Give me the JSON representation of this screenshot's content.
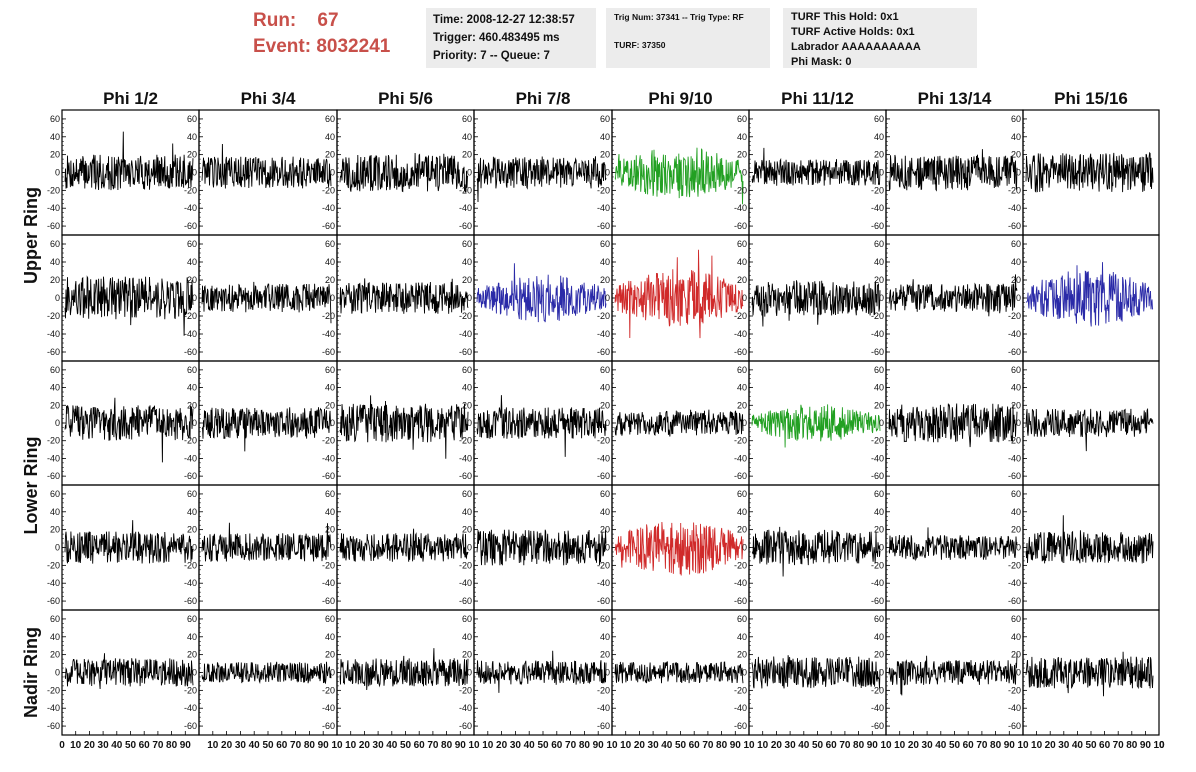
{
  "run_info": {
    "run_label": "Run:",
    "run_value": "67",
    "event_label": "Event:",
    "event_value": "8032241",
    "color": "#c8504a"
  },
  "trigger_box": {
    "time": "Time: 2008-12-27 12:38:57",
    "trigger": "Trigger: 460.483495 ms",
    "priority": "Priority: 7 -- Queue: 7"
  },
  "trig_box": {
    "trig": "Trig Num: 37341 -- Trig Type: RF",
    "turf": "TURF: 37350"
  },
  "turf_box": {
    "hold": "TURF This Hold: 0x1",
    "active": "TURF Active Holds: 0x1",
    "labrador": "Labrador AAAAAAAAAA",
    "phi_mask": "Phi Mask: 0"
  },
  "chart_data": {
    "type": "line",
    "columns": [
      "Phi 1/2",
      "Phi 3/4",
      "Phi 5/6",
      "Phi 7/8",
      "Phi 9/10",
      "Phi 11/12",
      "Phi 13/14",
      "Phi 15/16"
    ],
    "ring_labels": [
      "Upper Ring",
      "Lower Ring",
      "Nadir Ring"
    ],
    "row_rings": [
      "Upper",
      "Upper",
      "Lower",
      "Lower",
      "Nadir"
    ],
    "ylim": [
      -70,
      70
    ],
    "yticks": [
      60,
      40,
      20,
      0,
      -20,
      -40,
      -60
    ],
    "xlim": [
      0,
      100
    ],
    "xticks": [
      "0",
      "10",
      "20",
      "30",
      "40",
      "50",
      "60",
      "70",
      "80",
      "90",
      "100"
    ],
    "panel_xticks": [
      "10",
      "20",
      "30",
      "40",
      "50",
      "60",
      "70",
      "80",
      "90",
      "10"
    ],
    "highlight_colors": {
      "black": "#000000",
      "green": "#22a022",
      "blue": "#2a2aa8",
      "red": "#d02a2a"
    },
    "trace_colors": [
      [
        "black",
        "black",
        "black",
        "black",
        "green",
        "black",
        "black",
        "black"
      ],
      [
        "black",
        "black",
        "black",
        "blue",
        "red",
        "black",
        "black",
        "blue"
      ],
      [
        "black",
        "black",
        "black",
        "black",
        "black",
        "green",
        "black",
        "black"
      ],
      [
        "black",
        "black",
        "black",
        "black",
        "red",
        "black",
        "black",
        "black"
      ],
      [
        "black",
        "black",
        "black",
        "black",
        "black",
        "black",
        "black",
        "black"
      ]
    ],
    "trace_amplitude": [
      [
        20,
        18,
        22,
        18,
        22,
        15,
        20,
        22
      ],
      [
        24,
        16,
        18,
        20,
        24,
        20,
        16,
        24
      ],
      [
        20,
        18,
        22,
        18,
        14,
        16,
        22,
        16
      ],
      [
        18,
        16,
        16,
        20,
        24,
        20,
        14,
        18
      ],
      [
        16,
        12,
        16,
        14,
        12,
        18,
        14,
        18
      ]
    ],
    "samples_per_trace": 260
  }
}
